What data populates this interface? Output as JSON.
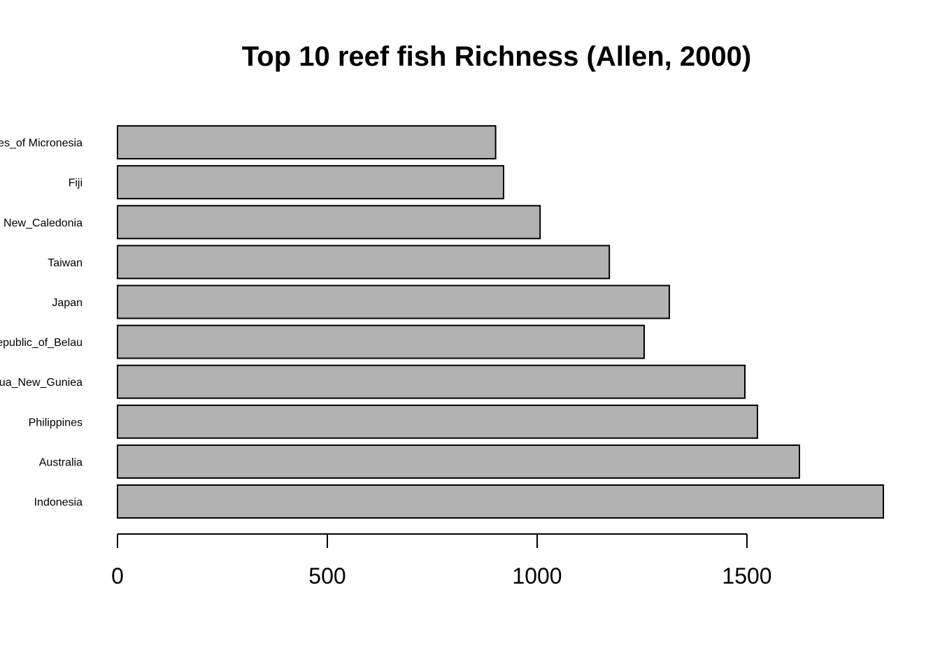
{
  "chart_data": {
    "type": "bar",
    "orientation": "horizontal",
    "title": "Top 10 reef fish Richness (Allen, 2000)",
    "xlabel": "",
    "ylabel": "",
    "categories": [
      "Indonesia",
      "Australia",
      "Philippines",
      "Papua_New_Guniea",
      "Republic_of_Belau",
      "Japan",
      "Taiwan",
      "New_Caledonia",
      "Fiji",
      "Federated_States_of Micronesia"
    ],
    "values": [
      1825,
      1625,
      1525,
      1495,
      1255,
      1315,
      1172,
      1007,
      920,
      901
    ],
    "xlim": [
      0,
      1825
    ],
    "xticks": [
      0,
      500,
      1000,
      1500
    ],
    "bar_color": "#b2b2b2",
    "edge_color": "#000000",
    "grid": false,
    "legend": "none"
  }
}
